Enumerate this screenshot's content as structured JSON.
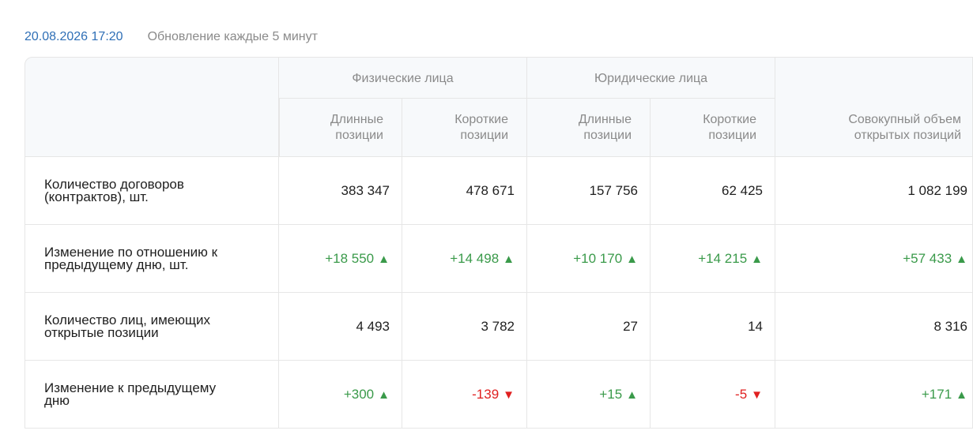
{
  "header": {
    "timestamp": "20.08.2026 17:20",
    "update_note": "Обновление каждые 5 минут"
  },
  "columns": {
    "group_individuals": "Физические лица",
    "group_legal": "Юридические лица",
    "ind_long_l1": "Длинные",
    "ind_long_l2": "позиции",
    "ind_short_l1": "Короткие",
    "ind_short_l2": "позиции",
    "leg_long_l1": "Длинные",
    "leg_long_l2": "позиции",
    "leg_short_l1": "Короткие",
    "leg_short_l2": "позиции",
    "total_l1": "Совокупный объем",
    "total_l2": "открытых позиций"
  },
  "rows": [
    {
      "label_l1": "Количество договоров",
      "label_l2": "(контрактов), шт.",
      "values": [
        "383 347",
        "478 671",
        "157 756",
        "62 425",
        "1 082 199"
      ]
    },
    {
      "label_l1": "Изменение по отношению к",
      "label_l2": "предыдущему дню, шт.",
      "values": [
        "+18 550",
        "+14 498",
        "+10 170",
        "+14 215",
        "+57 433"
      ]
    },
    {
      "label_l1": "Количество лиц, имеющих",
      "label_l2": "открытые позиции",
      "values": [
        "4 493",
        "3 782",
        "27",
        "14",
        "8 316"
      ]
    },
    {
      "label_l1": "Изменение к предыдущему",
      "label_l2": "дню",
      "values": [
        "+300",
        "-139",
        "+15",
        "-5",
        "+171"
      ]
    }
  ],
  "icons": {
    "up": "▲",
    "down": "▼"
  },
  "colors": {
    "up": "#3a9a4a",
    "down": "#e02020",
    "timestamp": "#2f6fb6"
  }
}
